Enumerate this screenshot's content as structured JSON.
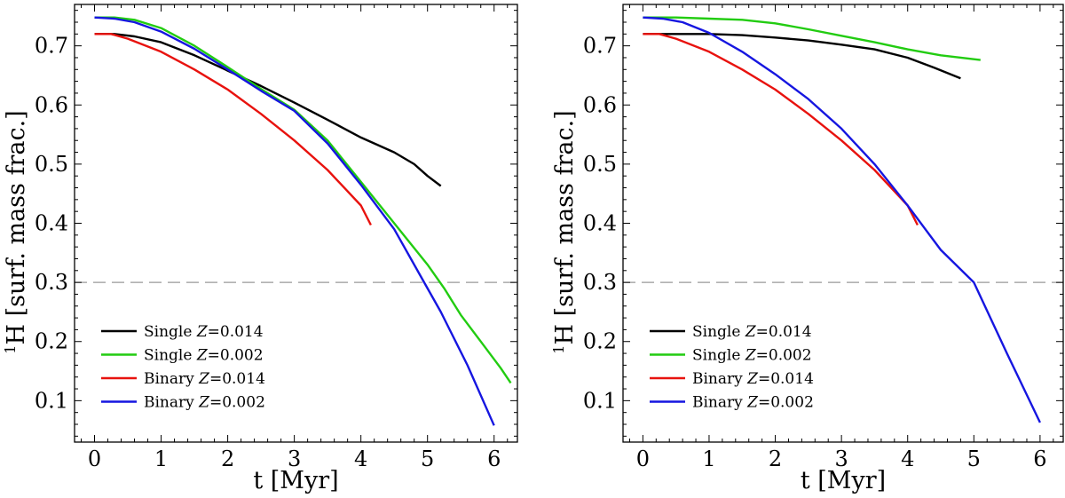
{
  "chart_data": [
    {
      "type": "line",
      "title": "",
      "xlabel": "t [Myr]",
      "ylabel_sup": "1",
      "ylabel": "H [surf. mass frac.]",
      "xlim": [
        -0.3,
        6.35
      ],
      "ylim": [
        0.03,
        0.77
      ],
      "xticks": [
        "0",
        "1",
        "2",
        "3",
        "4",
        "5",
        "6"
      ],
      "yticks": [
        "0.1",
        "0.2",
        "0.3",
        "0.4",
        "0.5",
        "0.6",
        "0.7"
      ],
      "hline": {
        "y": 0.3,
        "style": "dashed",
        "color": "#999999"
      },
      "legend_location": "lower-left",
      "series": [
        {
          "name": "Single",
          "metal_label": "Z",
          "metal_value": "=0.014",
          "color": "#000000",
          "x": [
            0.0,
            0.3,
            0.6,
            1.0,
            1.5,
            2.0,
            2.5,
            3.0,
            3.5,
            4.0,
            4.5,
            4.8,
            5.0,
            5.2
          ],
          "y": [
            0.72,
            0.72,
            0.716,
            0.706,
            0.684,
            0.658,
            0.632,
            0.604,
            0.575,
            0.545,
            0.52,
            0.5,
            0.48,
            0.463
          ]
        },
        {
          "name": "Single",
          "metal_label": "Z",
          "metal_value": "=0.002",
          "color": "#22cc11",
          "x": [
            0.0,
            0.3,
            0.6,
            1.0,
            1.5,
            2.0,
            2.5,
            3.0,
            3.5,
            4.0,
            4.5,
            5.0,
            5.25,
            5.5,
            5.8,
            6.1,
            6.25
          ],
          "y": [
            0.748,
            0.748,
            0.744,
            0.73,
            0.7,
            0.664,
            0.627,
            0.592,
            0.54,
            0.47,
            0.4,
            0.33,
            0.29,
            0.245,
            0.2,
            0.155,
            0.13
          ]
        },
        {
          "name": "Binary",
          "metal_label": "Z",
          "metal_value": "=0.014",
          "color": "#e8120e",
          "x": [
            0.0,
            0.25,
            0.5,
            1.0,
            1.5,
            2.0,
            2.5,
            3.0,
            3.5,
            4.0,
            4.15
          ],
          "y": [
            0.72,
            0.72,
            0.712,
            0.69,
            0.66,
            0.626,
            0.585,
            0.54,
            0.49,
            0.43,
            0.397
          ]
        },
        {
          "name": "Binary",
          "metal_label": "Z",
          "metal_value": "=0.002",
          "color": "#1616e0",
          "x": [
            0.0,
            0.3,
            0.6,
            1.0,
            1.5,
            2.0,
            2.5,
            3.0,
            3.5,
            4.0,
            4.5,
            4.9,
            5.2,
            5.6,
            6.0
          ],
          "y": [
            0.748,
            0.746,
            0.74,
            0.724,
            0.695,
            0.66,
            0.624,
            0.59,
            0.535,
            0.465,
            0.39,
            0.31,
            0.25,
            0.16,
            0.058
          ]
        }
      ]
    },
    {
      "type": "line",
      "title": "",
      "xlabel": "t [Myr]",
      "ylabel_sup": "1",
      "ylabel": "H [surf. mass frac.]",
      "xlim": [
        -0.3,
        6.35
      ],
      "ylim": [
        0.03,
        0.77
      ],
      "xticks": [
        "0",
        "1",
        "2",
        "3",
        "4",
        "5",
        "6"
      ],
      "yticks": [
        "0.1",
        "0.2",
        "0.3",
        "0.4",
        "0.5",
        "0.6",
        "0.7"
      ],
      "hline": {
        "y": 0.3,
        "style": "dashed",
        "color": "#999999"
      },
      "legend_location": "lower-left",
      "series": [
        {
          "name": "Single",
          "metal_label": "Z",
          "metal_value": "=0.014",
          "color": "#000000",
          "x": [
            0.0,
            0.5,
            1.0,
            1.5,
            2.0,
            2.5,
            3.0,
            3.5,
            4.0,
            4.4,
            4.8
          ],
          "y": [
            0.72,
            0.72,
            0.72,
            0.718,
            0.714,
            0.709,
            0.702,
            0.694,
            0.68,
            0.663,
            0.645
          ]
        },
        {
          "name": "Single",
          "metal_label": "Z",
          "metal_value": "=0.002",
          "color": "#22cc11",
          "x": [
            0.0,
            0.5,
            1.0,
            1.5,
            2.0,
            2.5,
            3.0,
            3.5,
            4.0,
            4.5,
            5.1
          ],
          "y": [
            0.748,
            0.748,
            0.746,
            0.744,
            0.738,
            0.728,
            0.717,
            0.706,
            0.694,
            0.684,
            0.676
          ]
        },
        {
          "name": "Binary",
          "metal_label": "Z",
          "metal_value": "=0.014",
          "color": "#e8120e",
          "x": [
            0.0,
            0.25,
            0.5,
            1.0,
            1.5,
            2.0,
            2.5,
            3.0,
            3.5,
            4.0,
            4.15
          ],
          "y": [
            0.72,
            0.72,
            0.712,
            0.69,
            0.66,
            0.626,
            0.585,
            0.54,
            0.49,
            0.43,
            0.397
          ]
        },
        {
          "name": "Binary",
          "metal_label": "Z",
          "metal_value": "=0.002",
          "color": "#1616e0",
          "x": [
            0.0,
            0.3,
            0.6,
            1.0,
            1.5,
            2.0,
            2.5,
            3.0,
            3.5,
            4.0,
            4.5,
            5.0,
            5.5,
            6.0
          ],
          "y": [
            0.748,
            0.746,
            0.74,
            0.722,
            0.69,
            0.652,
            0.61,
            0.56,
            0.5,
            0.43,
            0.355,
            0.3,
            0.18,
            0.063
          ]
        }
      ]
    }
  ]
}
